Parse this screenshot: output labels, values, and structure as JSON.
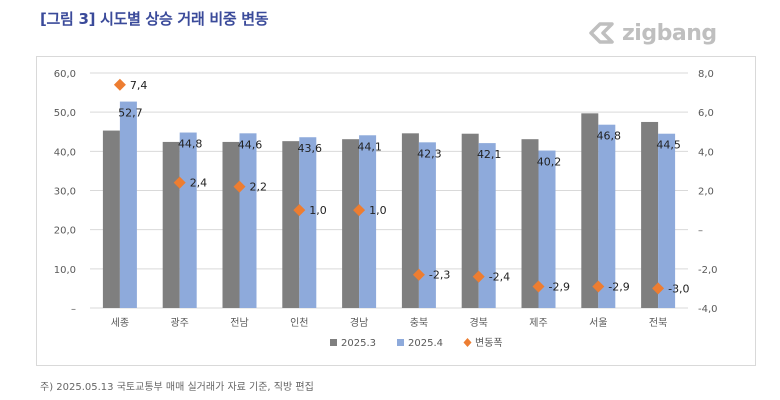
{
  "title": "[그림 3] 시도별 상승 거래 비중 변동",
  "logo": {
    "text": "zigbang",
    "icon": "zigbang-logo-icon",
    "color": "#bfbfbf"
  },
  "footnote": "주) 2025.05.13 국토교통부 매매 실거래가 자료 기준, 직방 편집",
  "colors": {
    "bar2025_3": "#7f7f7f",
    "bar2025_4": "#8eaadb",
    "change": "#ed7d31",
    "title": "#3a4a9a"
  },
  "chart_data": {
    "type": "bar",
    "categories": [
      "세종",
      "광주",
      "전남",
      "인천",
      "경남",
      "충북",
      "경북",
      "제주",
      "서울",
      "전북"
    ],
    "series": [
      {
        "name": "2025.3",
        "values": [
          45.3,
          42.4,
          42.4,
          42.6,
          43.1,
          44.6,
          44.5,
          43.1,
          49.7,
          47.5
        ]
      },
      {
        "name": "2025.4",
        "values": [
          52.7,
          44.8,
          44.6,
          43.6,
          44.1,
          42.3,
          42.1,
          40.2,
          46.8,
          44.5
        ],
        "labels": [
          "52,7",
          "44,8",
          "44,6",
          "43,6",
          "44,1",
          "42,3",
          "42,1",
          "40,2",
          "46,8",
          "44,5"
        ]
      },
      {
        "name": "변동폭",
        "type": "scatter",
        "axis": "right",
        "values": [
          7.4,
          2.4,
          2.2,
          1.0,
          1.0,
          -2.3,
          -2.4,
          -2.9,
          -2.9,
          -3.0
        ],
        "labels": [
          "7,4",
          "2,4",
          "2,2",
          "1,0",
          "1,0",
          "-2,3",
          "-2,4",
          "-2,9",
          "-2,9",
          "-3,0"
        ]
      }
    ],
    "ylim_left": [
      0,
      60
    ],
    "yticks_left": [
      "–",
      "10,0",
      "20,0",
      "30,0",
      "40,0",
      "50,0",
      "60,0"
    ],
    "ylim_right": [
      -4,
      8
    ],
    "yticks_right": [
      "-4,0",
      "-2,0",
      "–",
      "2,0",
      "4,0",
      "6,0",
      "8,0"
    ],
    "grid": true,
    "legend_position": "bottom"
  }
}
